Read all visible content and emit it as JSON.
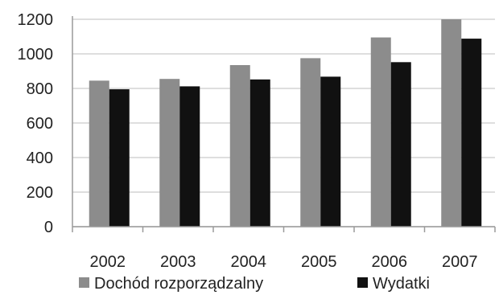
{
  "chart_data": {
    "type": "bar",
    "categories": [
      "2002",
      "2003",
      "2004",
      "2005",
      "2006",
      "2007"
    ],
    "series": [
      {
        "name": "Dochód rozporządzalny",
        "values": [
          845,
          855,
          935,
          975,
          1095,
          1200
        ],
        "color": "#8c8c8c"
      },
      {
        "name": "Wydatki",
        "values": [
          795,
          812,
          852,
          868,
          952,
          1088
        ],
        "color": "#111111"
      }
    ],
    "ylim": [
      0,
      1200
    ],
    "yticks": [
      "0",
      "200",
      "400",
      "600",
      "800",
      "1000",
      "1200"
    ],
    "grid": true,
    "legend_position": "bottom",
    "title": "",
    "xlabel": "",
    "ylabel": ""
  }
}
